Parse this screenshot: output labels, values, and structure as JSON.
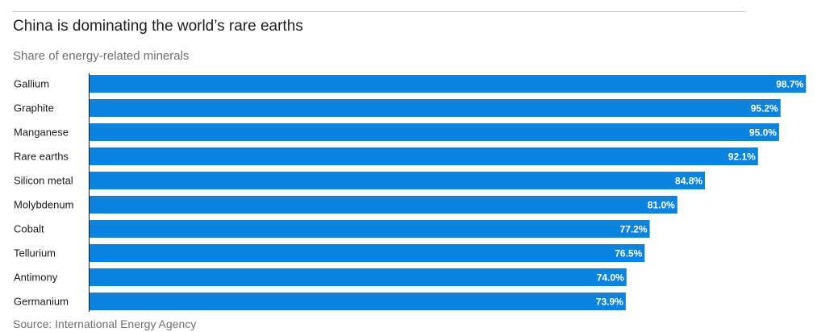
{
  "title": "China is dominating the world’s rare earths",
  "subtitle": "Share of energy-related minerals",
  "source": "Source: International Energy Agency",
  "colors": {
    "bar": "#0b84e0",
    "axis": "#1a1a1a",
    "rule": "#c7c7c7"
  },
  "chart_data": {
    "type": "bar",
    "orientation": "horizontal",
    "title": "China is dominating the world’s rare earths",
    "subtitle": "Share of energy-related minerals",
    "xlabel": "",
    "ylabel": "",
    "xlim": [
      0,
      100
    ],
    "grid": false,
    "unit": "%",
    "categories": [
      "Gallium",
      "Graphite",
      "Manganese",
      "Rare earths",
      "Silicon metal",
      "Molybdenum",
      "Cobalt",
      "Tellurium",
      "Antimony",
      "Germanium"
    ],
    "values": [
      98.7,
      95.2,
      95.0,
      92.1,
      84.8,
      81.0,
      77.2,
      76.5,
      74.0,
      73.9
    ],
    "value_labels": [
      "98.7%",
      "95.2%",
      "95.0%",
      "92.1%",
      "84.8%",
      "81.0%",
      "77.2%",
      "76.5%",
      "74.0%",
      "73.9%"
    ]
  }
}
